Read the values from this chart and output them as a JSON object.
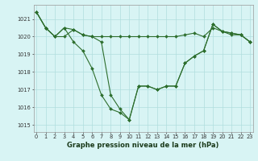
{
  "series": [
    {
      "x": [
        0,
        1,
        2,
        3,
        4,
        5,
        6,
        7,
        8,
        9,
        10,
        11,
        12,
        13,
        14,
        15,
        16,
        17,
        18,
        19,
        20,
        21,
        22,
        23
      ],
      "y": [
        1021.4,
        1020.5,
        1020.0,
        1020.0,
        1020.4,
        1020.1,
        1020.0,
        1020.0,
        1020.0,
        1020.0,
        1020.0,
        1020.0,
        1020.0,
        1020.0,
        1020.0,
        1020.0,
        1020.1,
        1020.2,
        1020.0,
        1020.5,
        1020.3,
        1020.1,
        1020.1,
        1019.7
      ]
    },
    {
      "x": [
        0,
        1,
        2,
        3,
        4,
        5,
        6,
        7,
        8,
        9,
        10,
        11,
        12,
        13,
        14,
        15,
        16,
        17,
        18,
        19,
        20,
        21,
        22,
        23
      ],
      "y": [
        1021.4,
        1020.5,
        1020.0,
        1020.5,
        1019.7,
        1019.2,
        1018.2,
        1016.7,
        1015.9,
        1015.7,
        1015.3,
        1017.2,
        1017.2,
        1017.0,
        1017.2,
        1017.2,
        1018.5,
        1018.9,
        1019.2,
        1020.7,
        1020.3,
        1020.2,
        1020.1,
        1019.7
      ]
    },
    {
      "x": [
        0,
        1,
        2,
        3,
        4,
        5,
        6,
        7,
        8,
        9,
        10,
        11,
        12,
        13,
        14,
        15,
        16,
        17,
        18,
        19,
        20,
        21,
        22,
        23
      ],
      "y": [
        1021.4,
        1020.5,
        1020.0,
        1020.5,
        1020.4,
        1020.1,
        1020.0,
        1019.7,
        1016.7,
        1015.9,
        1015.3,
        1017.2,
        1017.2,
        1017.0,
        1017.2,
        1017.2,
        1018.5,
        1018.9,
        1019.2,
        1020.7,
        1020.3,
        1020.2,
        1020.1,
        1019.7
      ]
    }
  ],
  "color": "#2d6e2d",
  "marker": "D",
  "markersize": 2.0,
  "linewidth": 0.8,
  "xlim": [
    -0.3,
    23.3
  ],
  "ylim": [
    1014.6,
    1021.8
  ],
  "yticks": [
    1015,
    1016,
    1017,
    1018,
    1019,
    1020,
    1021
  ],
  "xticks": [
    0,
    1,
    2,
    3,
    4,
    5,
    6,
    7,
    8,
    9,
    10,
    11,
    12,
    13,
    14,
    15,
    16,
    17,
    18,
    19,
    20,
    21,
    22,
    23
  ],
  "xlabel": "Graphe pression niveau de la mer (hPa)",
  "background_color": "#d8f4f4",
  "grid_color": "#b0dede",
  "tick_fontsize": 4.8,
  "label_fontsize": 6.0
}
